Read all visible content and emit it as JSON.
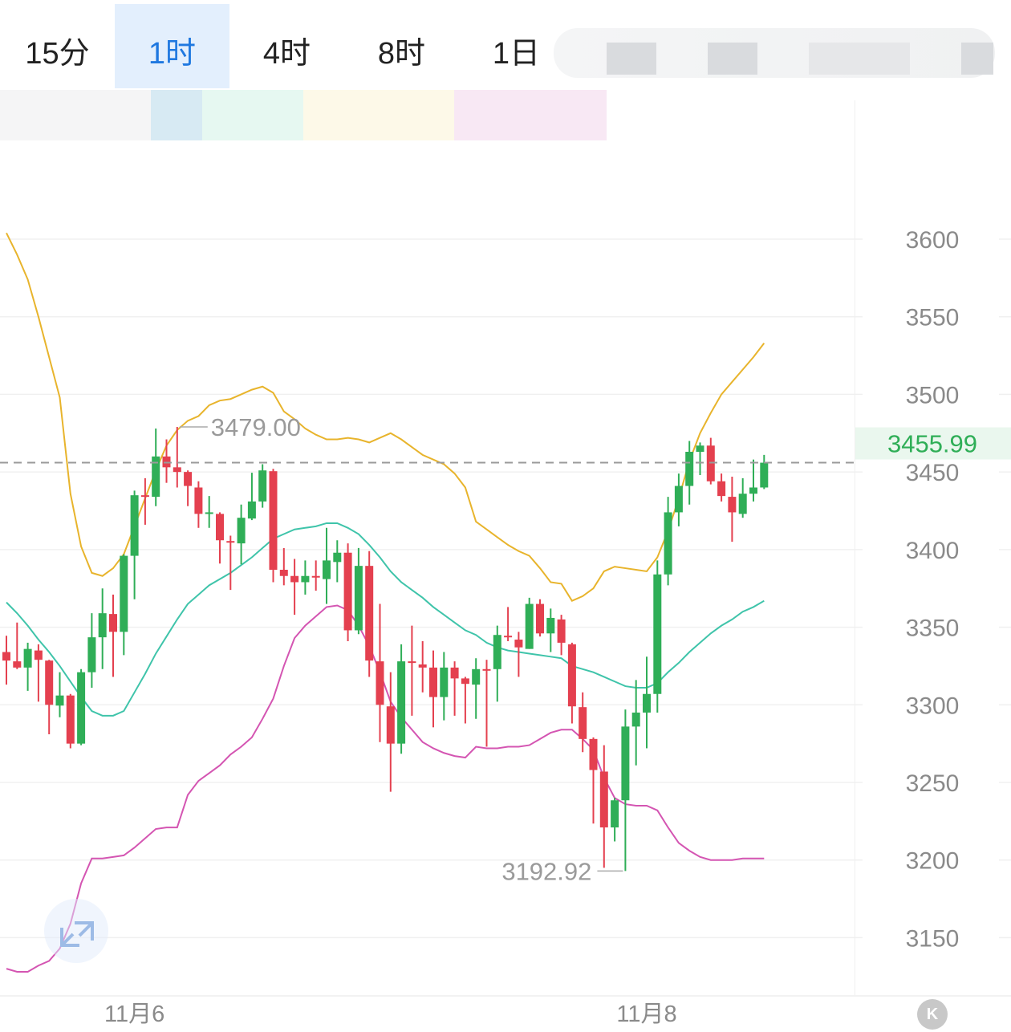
{
  "tabs": [
    {
      "label": "15分",
      "active": false
    },
    {
      "label": "1时",
      "active": true
    },
    {
      "label": "4时",
      "active": false
    },
    {
      "label": "8时",
      "active": false
    },
    {
      "label": "1日",
      "active": false
    }
  ],
  "icons": {
    "expand": "expand-arrows-icon",
    "kline_toggle": "k-icon"
  },
  "kline_toggle_label": "K",
  "colors": {
    "up": "#2fae57",
    "down": "#e4404f",
    "upper_band": "#e8b42c",
    "middle_band": "#3fc4aa",
    "lower_band": "#d455b2",
    "active_tab": "#1f78e0"
  },
  "chart_data": {
    "type": "candlestick",
    "interval": "1时",
    "ylim": [
      3113,
      3661
    ],
    "y_ticks": [
      3600,
      3550,
      3500,
      3450,
      3400,
      3350,
      3300,
      3250,
      3200,
      3150
    ],
    "grid": true,
    "x_ticks": [
      {
        "label": "11月6",
        "index": 12
      },
      {
        "label": "11月8",
        "index": 60
      }
    ],
    "current_price": "3455.99",
    "high_label": {
      "text": "3479.00",
      "index": 16,
      "value": 3479.0
    },
    "low_label": {
      "text": "3192.92",
      "index": 58,
      "value": 3192.92
    },
    "candles": [
      [
        3334,
        3344.5,
        3313,
        3328.5
      ],
      [
        3328,
        3353,
        3323,
        3324
      ],
      [
        3324,
        3340,
        3309,
        3336
      ],
      [
        3335,
        3339,
        3302,
        3329
      ],
      [
        3328.5,
        3329,
        3281,
        3300
      ],
      [
        3299.5,
        3321,
        3292,
        3306
      ],
      [
        3306,
        3307,
        3272,
        3275
      ],
      [
        3275,
        3323,
        3274,
        3321
      ],
      [
        3321,
        3359,
        3311,
        3343.5
      ],
      [
        3343.5,
        3375,
        3323,
        3359
      ],
      [
        3358.5,
        3371,
        3318,
        3347
      ],
      [
        3347,
        3397,
        3332,
        3396
      ],
      [
        3396,
        3438,
        3368,
        3435
      ],
      [
        3435,
        3446,
        3416,
        3434
      ],
      [
        3434,
        3478,
        3428,
        3460
      ],
      [
        3460,
        3471,
        3443,
        3453
      ],
      [
        3453,
        3479,
        3440,
        3450
      ],
      [
        3450,
        3451,
        3428,
        3441
      ],
      [
        3440,
        3444,
        3414,
        3423
      ],
      [
        3423,
        3434.5,
        3414,
        3424
      ],
      [
        3423,
        3424,
        3391,
        3406
      ],
      [
        3405.5,
        3409,
        3374,
        3404.5
      ],
      [
        3404,
        3429,
        3390.5,
        3420.5
      ],
      [
        3420,
        3449.5,
        3419,
        3431
      ],
      [
        3431,
        3455,
        3427,
        3451
      ],
      [
        3450.5,
        3452,
        3379,
        3387
      ],
      [
        3387,
        3401,
        3377,
        3383
      ],
      [
        3383,
        3394,
        3358,
        3379
      ],
      [
        3379,
        3393,
        3371,
        3383
      ],
      [
        3383,
        3393,
        3373.5,
        3382
      ],
      [
        3381,
        3414,
        3365,
        3393
      ],
      [
        3392,
        3406,
        3379,
        3398
      ],
      [
        3398,
        3404,
        3341,
        3348
      ],
      [
        3348,
        3401,
        3345.5,
        3389.5
      ],
      [
        3389.5,
        3399,
        3318,
        3328.5
      ],
      [
        3328,
        3365,
        3276,
        3300
      ],
      [
        3299,
        3321,
        3244,
        3275
      ],
      [
        3275,
        3339,
        3268.5,
        3328
      ],
      [
        3328,
        3351,
        3293,
        3327
      ],
      [
        3326,
        3341,
        3308,
        3324
      ],
      [
        3324,
        3335,
        3285.5,
        3305
      ],
      [
        3305,
        3334,
        3290,
        3324
      ],
      [
        3324,
        3328,
        3293,
        3317
      ],
      [
        3317,
        3318,
        3288,
        3313.5
      ],
      [
        3313,
        3330,
        3291,
        3323
      ],
      [
        3323,
        3329,
        3273,
        3322.5
      ],
      [
        3323,
        3351,
        3302,
        3345
      ],
      [
        3344.5,
        3363,
        3341,
        3343.5
      ],
      [
        3342,
        3347,
        3318,
        3337
      ],
      [
        3336,
        3369,
        3336,
        3365
      ],
      [
        3365,
        3368,
        3344,
        3346
      ],
      [
        3346,
        3362,
        3334,
        3356
      ],
      [
        3355,
        3358,
        3332,
        3340
      ],
      [
        3339,
        3340,
        3288,
        3299
      ],
      [
        3298.5,
        3308,
        3269.5,
        3278
      ],
      [
        3278,
        3279,
        3223.5,
        3258
      ],
      [
        3257,
        3274,
        3195,
        3221
      ],
      [
        3221,
        3240,
        3212,
        3238.5
      ],
      [
        3238.5,
        3297,
        3192.92,
        3286
      ],
      [
        3286,
        3316,
        3261,
        3295
      ],
      [
        3295,
        3331,
        3272,
        3307
      ],
      [
        3307,
        3393,
        3295,
        3384
      ],
      [
        3384,
        3434,
        3377,
        3424
      ],
      [
        3424,
        3449,
        3415,
        3441
      ],
      [
        3441,
        3470,
        3429,
        3463
      ],
      [
        3463,
        3469,
        3448,
        3467
      ],
      [
        3467,
        3472,
        3442,
        3444
      ],
      [
        3444,
        3449,
        3431,
        3434.5
      ],
      [
        3434,
        3447,
        3405,
        3424
      ],
      [
        3423,
        3446,
        3420.5,
        3436
      ],
      [
        3436,
        3458,
        3431,
        3440
      ],
      [
        3440,
        3461,
        3439,
        3455.99
      ]
    ],
    "candle_format": [
      "open",
      "high",
      "low",
      "close"
    ],
    "bands": {
      "upper": [
        3604,
        3590,
        3574,
        3550,
        3524,
        3498,
        3436,
        3402,
        3385,
        3383,
        3388,
        3397,
        3415,
        3433,
        3451,
        3467,
        3477,
        3483,
        3486,
        3493,
        3496,
        3497,
        3500,
        3503,
        3505,
        3501,
        3489,
        3484,
        3478,
        3474,
        3471,
        3471,
        3472,
        3471,
        3469,
        3472,
        3475,
        3471,
        3466,
        3461,
        3458,
        3455,
        3449,
        3440,
        3418,
        3413,
        3408,
        3403,
        3399,
        3396,
        3388,
        3379,
        3378,
        3367,
        3370,
        3375,
        3386,
        3389,
        3388,
        3387,
        3386,
        3395,
        3412,
        3433,
        3457,
        3475,
        3488,
        3500,
        3508,
        3516,
        3524,
        3533
      ],
      "middle": [
        3366,
        3359,
        3351,
        3342,
        3334,
        3325,
        3315,
        3305,
        3296,
        3293,
        3293,
        3296,
        3308,
        3320,
        3333,
        3344,
        3355,
        3365,
        3371,
        3377,
        3381,
        3385,
        3390,
        3395,
        3401,
        3407,
        3410,
        3413,
        3414,
        3415,
        3417,
        3417,
        3414,
        3410,
        3403,
        3395,
        3386,
        3379,
        3374,
        3369,
        3363,
        3358,
        3353,
        3348,
        3345,
        3340,
        3337,
        3335,
        3334,
        3333,
        3332,
        3331,
        3330,
        3325,
        3323,
        3321,
        3318,
        3315,
        3312,
        3311,
        3311,
        3314,
        3321,
        3327,
        3334,
        3340,
        3346,
        3351,
        3355,
        3360,
        3363,
        3367
      ],
      "lower": [
        3130,
        3128,
        3128,
        3132,
        3135,
        3143,
        3159,
        3185,
        3201,
        3201,
        3202,
        3203,
        3208,
        3214,
        3220,
        3221,
        3221,
        3242,
        3251,
        3256,
        3261,
        3268,
        3273,
        3279,
        3291,
        3304,
        3325,
        3343,
        3351,
        3357,
        3363,
        3364,
        3361,
        3351,
        3338,
        3321,
        3302,
        3292,
        3284,
        3276,
        3272,
        3269,
        3267,
        3266,
        3273,
        3272,
        3272,
        3273,
        3273,
        3274,
        3278,
        3282,
        3284,
        3284,
        3278,
        3271,
        3253,
        3240,
        3236,
        3235,
        3235,
        3232,
        3221,
        3211,
        3206,
        3202,
        3200,
        3200,
        3200,
        3201,
        3201,
        3201
      ]
    }
  }
}
